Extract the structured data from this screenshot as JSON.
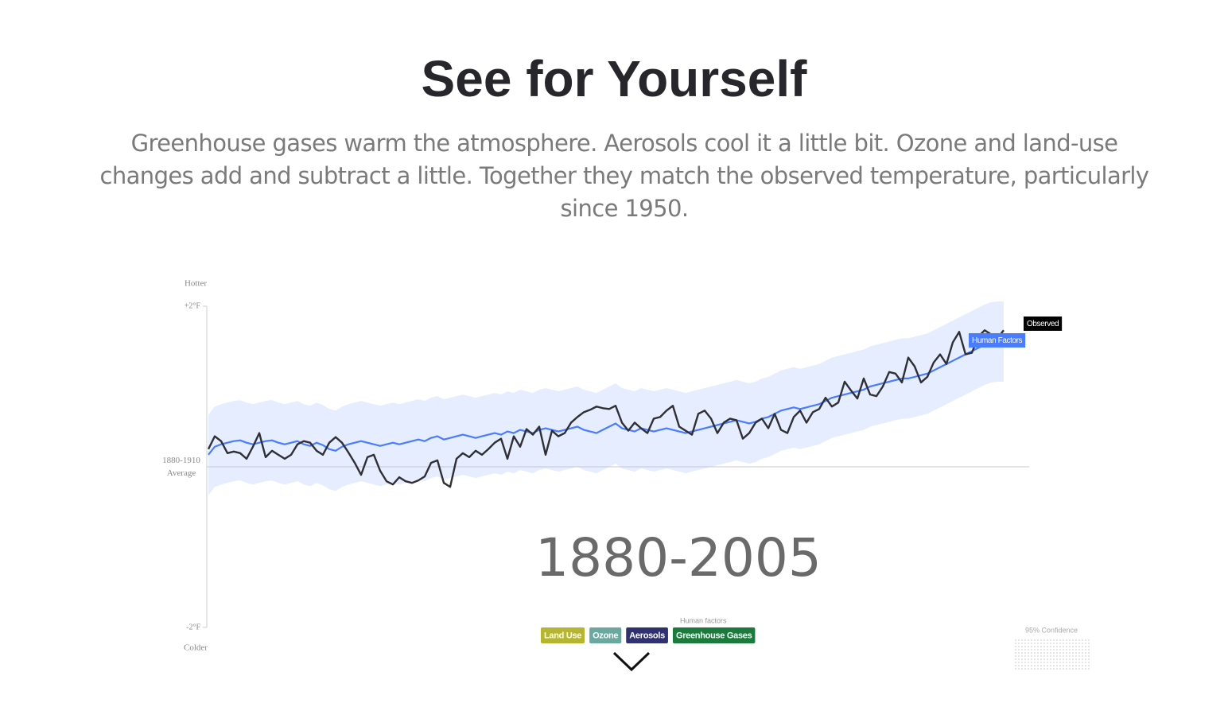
{
  "chart_data": {
    "type": "line",
    "title": "See for Yourself",
    "subtitle": "Greenhouse gases warm the atmosphere. Aerosols cool it a little bit. Ozone and land-use changes add and subtract a little. Together they match the observed temperature, particularly since 1950.",
    "y_top_label": "Hotter",
    "y_bottom_label": "Colder",
    "annotation": "1880-2005",
    "ylim": [
      -2,
      2
    ],
    "yticks": [
      {
        "value": 2,
        "label": "+2°F"
      },
      {
        "value": 0,
        "label": "1880-1910 Average"
      },
      {
        "value": -2,
        "label": "-2°F"
      }
    ],
    "x": [
      1880,
      1881,
      1882,
      1883,
      1884,
      1885,
      1886,
      1887,
      1888,
      1889,
      1890,
      1891,
      1892,
      1893,
      1894,
      1895,
      1896,
      1897,
      1898,
      1899,
      1900,
      1901,
      1902,
      1903,
      1904,
      1905,
      1906,
      1907,
      1908,
      1909,
      1910,
      1911,
      1912,
      1913,
      1914,
      1915,
      1916,
      1917,
      1918,
      1919,
      1920,
      1921,
      1922,
      1923,
      1924,
      1925,
      1926,
      1927,
      1928,
      1929,
      1930,
      1931,
      1932,
      1933,
      1934,
      1935,
      1936,
      1937,
      1938,
      1939,
      1940,
      1941,
      1942,
      1943,
      1944,
      1945,
      1946,
      1947,
      1948,
      1949,
      1950,
      1951,
      1952,
      1953,
      1954,
      1955,
      1956,
      1957,
      1958,
      1959,
      1960,
      1961,
      1962,
      1963,
      1964,
      1965,
      1966,
      1967,
      1968,
      1969,
      1970,
      1971,
      1972,
      1973,
      1974,
      1975,
      1976,
      1977,
      1978,
      1979,
      1980,
      1981,
      1982,
      1983,
      1984,
      1985,
      1986,
      1987,
      1988,
      1989,
      1990,
      1991,
      1992,
      1993,
      1994,
      1995,
      1996,
      1997,
      1998,
      1999,
      2000,
      2001,
      2002,
      2003,
      2004,
      2005
    ],
    "series": [
      {
        "name": "Observed",
        "color": "#2f2f35",
        "values": [
          0.22,
          0.38,
          0.32,
          0.17,
          0.19,
          0.17,
          0.1,
          0.25,
          0.42,
          0.12,
          0.2,
          0.15,
          0.1,
          0.15,
          0.28,
          0.32,
          0.3,
          0.2,
          0.15,
          0.3,
          0.37,
          0.3,
          0.18,
          0.05,
          -0.1,
          0.12,
          0.15,
          -0.05,
          -0.18,
          -0.22,
          -0.13,
          -0.18,
          -0.2,
          -0.17,
          -0.12,
          0.05,
          0.08,
          -0.2,
          -0.25,
          0.1,
          0.17,
          0.12,
          0.2,
          0.15,
          0.22,
          0.3,
          0.35,
          0.1,
          0.38,
          0.25,
          0.47,
          0.4,
          0.5,
          0.15,
          0.45,
          0.38,
          0.42,
          0.55,
          0.62,
          0.68,
          0.71,
          0.75,
          0.73,
          0.72,
          0.76,
          0.55,
          0.45,
          0.55,
          0.48,
          0.42,
          0.6,
          0.62,
          0.7,
          0.76,
          0.5,
          0.45,
          0.4,
          0.66,
          0.7,
          0.6,
          0.42,
          0.55,
          0.6,
          0.58,
          0.35,
          0.42,
          0.55,
          0.6,
          0.48,
          0.66,
          0.46,
          0.42,
          0.62,
          0.7,
          0.55,
          0.68,
          0.72,
          0.86,
          0.75,
          0.8,
          1.06,
          0.95,
          0.85,
          1.1,
          0.9,
          0.88,
          1.0,
          1.18,
          1.16,
          1.05,
          1.36,
          1.25,
          1.05,
          1.12,
          1.3,
          1.4,
          1.28,
          1.55,
          1.68,
          1.4,
          1.42,
          1.62,
          1.7,
          1.65,
          1.6,
          1.7
        ]
      },
      {
        "name": "Human Factors",
        "color": "#4a7cff",
        "values": [
          0.15,
          0.25,
          0.28,
          0.3,
          0.32,
          0.33,
          0.3,
          0.28,
          0.3,
          0.32,
          0.33,
          0.3,
          0.28,
          0.3,
          0.32,
          0.28,
          0.26,
          0.3,
          0.27,
          0.22,
          0.2,
          0.25,
          0.28,
          0.3,
          0.32,
          0.3,
          0.28,
          0.26,
          0.28,
          0.3,
          0.28,
          0.3,
          0.32,
          0.34,
          0.32,
          0.36,
          0.38,
          0.34,
          0.36,
          0.38,
          0.4,
          0.38,
          0.36,
          0.38,
          0.4,
          0.42,
          0.4,
          0.44,
          0.42,
          0.46,
          0.44,
          0.42,
          0.46,
          0.48,
          0.46,
          0.44,
          0.46,
          0.48,
          0.5,
          0.46,
          0.44,
          0.42,
          0.46,
          0.5,
          0.54,
          0.48,
          0.46,
          0.44,
          0.48,
          0.46,
          0.44,
          0.46,
          0.48,
          0.46,
          0.44,
          0.42,
          0.44,
          0.46,
          0.48,
          0.5,
          0.52,
          0.54,
          0.56,
          0.58,
          0.56,
          0.54,
          0.56,
          0.6,
          0.62,
          0.66,
          0.7,
          0.72,
          0.74,
          0.72,
          0.74,
          0.76,
          0.78,
          0.82,
          0.86,
          0.88,
          0.9,
          0.92,
          0.94,
          0.96,
          1.0,
          1.02,
          1.04,
          1.06,
          1.08,
          1.1,
          1.1,
          1.12,
          1.14,
          1.16,
          1.2,
          1.24,
          1.28,
          1.32,
          1.36,
          1.4,
          1.44,
          1.48,
          1.52,
          1.55,
          1.56,
          1.56
        ]
      }
    ],
    "confidence_label": "95% Confidence",
    "confidence_halfwidth": 0.5,
    "band_color": "#dfe8ff",
    "factors_caption": "Human factors",
    "factors": [
      {
        "name": "Land Use",
        "color": "#b5b531"
      },
      {
        "name": "Ozone",
        "color": "#6aa8a0"
      },
      {
        "name": "Aerosols",
        "color": "#2f3170"
      },
      {
        "name": "Greenhouse Gases",
        "color": "#1b7a3c"
      }
    ]
  }
}
